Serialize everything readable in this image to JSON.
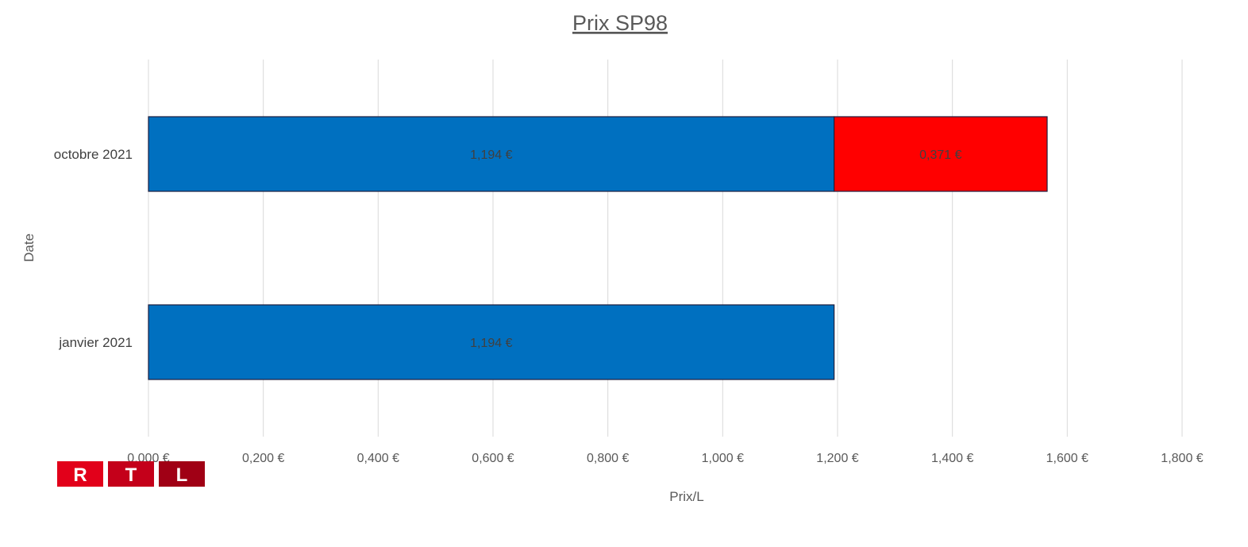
{
  "chart_data": {
    "type": "bar",
    "orientation": "horizontal",
    "stacked": true,
    "title": "Prix SP98",
    "xlabel": "Prix/L",
    "ylabel": "Date",
    "categories": [
      "janvier 2021",
      "octobre 2021"
    ],
    "series": [
      {
        "color": "#0070c0",
        "values": [
          1.194,
          1.194
        ],
        "labels": [
          "1,194 €",
          "1,194 €"
        ]
      },
      {
        "color": "#ff0000",
        "values": [
          0,
          0.371
        ],
        "labels": [
          "",
          "0,371 €"
        ]
      }
    ],
    "xlim": [
      0,
      1.8
    ],
    "xticks": [
      0,
      0.2,
      0.4,
      0.6,
      0.8,
      1.0,
      1.2,
      1.4,
      1.6,
      1.8
    ],
    "xtick_labels": [
      "0,000 €",
      "0,200 €",
      "0,400 €",
      "0,600 €",
      "0,800 €",
      "1,000 €",
      "1,200 €",
      "1,400 €",
      "1,600 €",
      "1,800 €"
    ],
    "grid": true,
    "legend": "none"
  },
  "logo": {
    "letters": [
      "R",
      "T",
      "L"
    ],
    "colors": [
      "#e2001a",
      "#c4001a",
      "#a00015"
    ]
  }
}
